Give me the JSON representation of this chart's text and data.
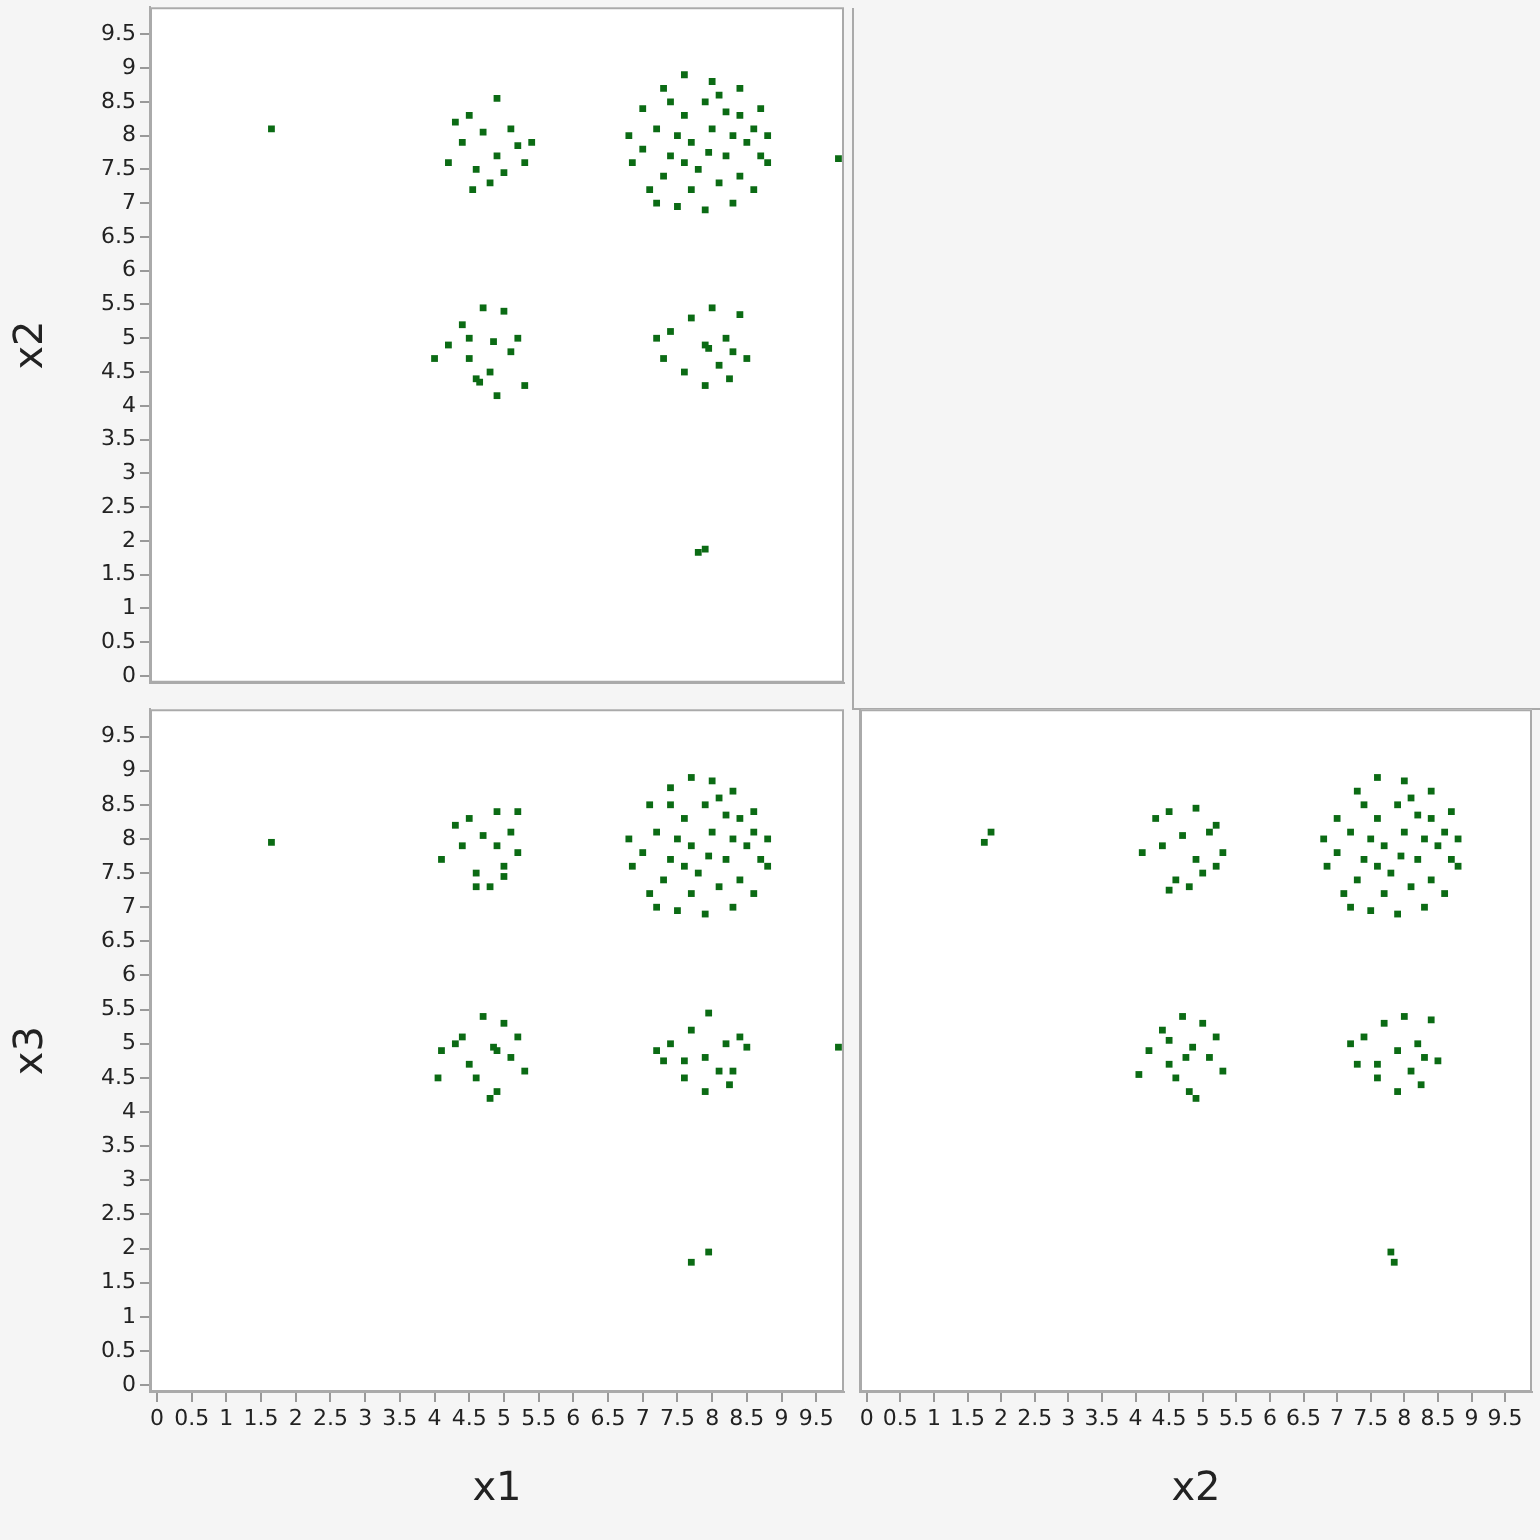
{
  "chart_data": [
    {
      "type": "scatter",
      "ylabel": "x2",
      "color": "#0b6b14",
      "marker": "square",
      "grid": false,
      "legend": false,
      "tick_labels": "y",
      "xlim": [
        -0.1,
        9.9
      ],
      "ylim": [
        -0.1,
        9.9
      ],
      "xticks": [
        0,
        0.5,
        1,
        1.5,
        2,
        2.5,
        3,
        3.5,
        4,
        4.5,
        5,
        5.5,
        6,
        6.5,
        7,
        7.5,
        8,
        8.5,
        9,
        9.5
      ],
      "yticks": [
        0,
        0.5,
        1,
        1.5,
        2,
        2.5,
        3,
        3.5,
        4,
        4.5,
        5,
        5.5,
        6,
        6.5,
        7,
        7.5,
        8,
        8.5,
        9,
        9.5
      ],
      "x": [
        7.0,
        7.3,
        7.6,
        8.0,
        8.4,
        8.7,
        8.8,
        8.8,
        8.6,
        8.3,
        7.9,
        7.5,
        7.1,
        6.85,
        6.8,
        7.2,
        7.4,
        7.6,
        7.8,
        8.0,
        8.2,
        8.4,
        8.5,
        7.7,
        8.1,
        7.3,
        7.9,
        8.3,
        7.5,
        7.0,
        8.6,
        8.1,
        7.4,
        7.7,
        8.4,
        7.95,
        7.2,
        8.7,
        7.6,
        8.2,
        4.3,
        4.5,
        4.9,
        5.1,
        5.4,
        5.3,
        4.9,
        4.6,
        4.2,
        4.4,
        4.8,
        5.0,
        4.7,
        5.2,
        4.55,
        4.4,
        4.7,
        5.0,
        4.2,
        4.5,
        4.6,
        4.65,
        4.8,
        5.1,
        5.3,
        4.9,
        5.2,
        4.0,
        4.85,
        4.5,
        7.2,
        7.4,
        7.7,
        8.0,
        8.4,
        8.2,
        7.9,
        7.95,
        8.3,
        8.5,
        7.6,
        7.9,
        8.1,
        7.3,
        8.25,
        1.65,
        7.8,
        7.9,
        9.82
      ],
      "values": [
        8.4,
        8.7,
        8.9,
        8.8,
        8.7,
        8.4,
        8.0,
        7.6,
        7.2,
        7.0,
        6.9,
        6.95,
        7.2,
        7.6,
        8.0,
        8.1,
        7.7,
        8.3,
        7.5,
        8.1,
        7.7,
        8.3,
        7.9,
        7.9,
        7.3,
        7.4,
        8.5,
        8.0,
        8.0,
        7.8,
        8.1,
        8.6,
        8.5,
        7.2,
        7.4,
        7.75,
        7.0,
        7.7,
        7.6,
        8.35,
        8.2,
        8.3,
        8.55,
        8.1,
        7.9,
        7.6,
        7.7,
        7.5,
        7.6,
        7.9,
        7.3,
        7.45,
        8.05,
        7.85,
        7.2,
        5.2,
        5.45,
        5.4,
        4.9,
        4.7,
        4.4,
        4.35,
        4.5,
        4.8,
        4.3,
        4.15,
        5.0,
        4.7,
        4.95,
        5.0,
        5.0,
        5.1,
        5.3,
        5.45,
        5.35,
        5.0,
        4.9,
        4.85,
        4.8,
        4.7,
        4.5,
        4.3,
        4.6,
        4.7,
        4.4,
        8.1,
        1.83,
        1.88,
        7.66
      ]
    },
    {
      "type": "scatter",
      "xlabel": "x1",
      "ylabel": "x3",
      "color": "#0b6b14",
      "marker": "square",
      "grid": false,
      "legend": false,
      "xlim": [
        -0.1,
        9.9
      ],
      "ylim": [
        -0.1,
        9.9
      ],
      "xticks": [
        0,
        0.5,
        1,
        1.5,
        2,
        2.5,
        3,
        3.5,
        4,
        4.5,
        5,
        5.5,
        6,
        6.5,
        7,
        7.5,
        8,
        8.5,
        9,
        9.5
      ],
      "yticks": [
        0,
        0.5,
        1,
        1.5,
        2,
        2.5,
        3,
        3.5,
        4,
        4.5,
        5,
        5.5,
        6,
        6.5,
        7,
        7.5,
        8,
        8.5,
        9,
        9.5
      ],
      "x": [
        7.1,
        7.4,
        7.7,
        8.0,
        8.3,
        8.6,
        8.8,
        8.8,
        8.6,
        8.3,
        7.9,
        7.5,
        7.1,
        6.85,
        6.8,
        7.2,
        7.4,
        7.6,
        7.8,
        8.0,
        8.2,
        8.4,
        8.5,
        7.7,
        8.1,
        7.3,
        7.9,
        8.3,
        7.5,
        7.0,
        8.6,
        8.1,
        7.4,
        7.7,
        8.4,
        7.95,
        7.2,
        8.7,
        7.6,
        8.2,
        4.3,
        4.5,
        4.9,
        5.1,
        5.2,
        5.0,
        4.9,
        4.6,
        4.1,
        4.4,
        4.8,
        5.0,
        4.7,
        5.2,
        4.6,
        4.3,
        4.7,
        5.0,
        4.1,
        4.5,
        4.6,
        4.9,
        4.8,
        5.1,
        5.3,
        4.9,
        5.2,
        4.05,
        4.85,
        4.4,
        7.2,
        7.4,
        7.7,
        7.95,
        8.4,
        8.2,
        7.9,
        7.6,
        8.3,
        8.5,
        7.6,
        7.9,
        8.1,
        7.3,
        8.25,
        1.65,
        7.7,
        7.95,
        9.82
      ],
      "values": [
        8.5,
        8.75,
        8.9,
        8.85,
        8.7,
        8.4,
        8.0,
        7.6,
        7.2,
        7.0,
        6.9,
        6.95,
        7.2,
        7.6,
        8.0,
        8.1,
        7.7,
        8.3,
        7.5,
        8.1,
        7.7,
        8.3,
        7.9,
        7.9,
        7.3,
        7.4,
        8.5,
        8.0,
        8.0,
        7.8,
        8.1,
        8.6,
        8.5,
        7.2,
        7.4,
        7.75,
        7.0,
        7.7,
        7.6,
        8.35,
        8.2,
        8.3,
        8.4,
        8.1,
        7.8,
        7.6,
        7.9,
        7.5,
        7.7,
        7.9,
        7.3,
        7.45,
        8.05,
        8.4,
        7.3,
        5.0,
        5.4,
        5.3,
        4.9,
        4.7,
        4.5,
        4.9,
        4.2,
        4.8,
        4.6,
        4.3,
        5.1,
        4.5,
        4.95,
        5.1,
        4.9,
        5.0,
        5.2,
        5.45,
        5.1,
        5.0,
        4.8,
        4.75,
        4.6,
        4.95,
        4.5,
        4.3,
        4.6,
        4.75,
        4.4,
        7.95,
        1.8,
        1.95,
        4.95
      ]
    },
    {
      "type": "scatter",
      "xlabel": "x2",
      "color": "#0b6b14",
      "marker": "square",
      "grid": false,
      "legend": false,
      "tick_labels": "x",
      "xlim": [
        -0.1,
        9.9
      ],
      "ylim": [
        -0.1,
        9.9
      ],
      "xticks": [
        0,
        0.5,
        1,
        1.5,
        2,
        2.5,
        3,
        3.5,
        4,
        4.5,
        5,
        5.5,
        6,
        6.5,
        7,
        7.5,
        8,
        8.5,
        9,
        9.5
      ],
      "yticks": [
        0,
        0.5,
        1,
        1.5,
        2,
        2.5,
        3,
        3.5,
        4,
        4.5,
        5,
        5.5,
        6,
        6.5,
        7,
        7.5,
        8,
        8.5,
        9,
        9.5
      ],
      "x": [
        7.0,
        7.3,
        7.6,
        8.0,
        8.4,
        8.7,
        8.8,
        8.8,
        8.6,
        8.3,
        7.9,
        7.5,
        7.1,
        6.85,
        6.8,
        7.2,
        7.4,
        7.6,
        7.8,
        8.0,
        8.2,
        8.4,
        8.5,
        7.7,
        8.1,
        7.3,
        7.9,
        8.3,
        7.5,
        7.0,
        8.6,
        8.1,
        7.4,
        7.7,
        8.4,
        7.95,
        7.2,
        8.7,
        7.6,
        8.2,
        4.3,
        4.5,
        4.9,
        5.1,
        5.3,
        5.2,
        4.9,
        4.6,
        4.1,
        4.4,
        4.8,
        5.0,
        4.7,
        5.2,
        4.5,
        4.4,
        4.7,
        5.0,
        4.2,
        4.5,
        4.6,
        4.75,
        4.8,
        5.1,
        5.3,
        4.9,
        5.2,
        4.05,
        4.85,
        4.5,
        7.2,
        7.4,
        7.7,
        8.0,
        8.4,
        8.2,
        7.9,
        7.6,
        8.3,
        8.5,
        7.6,
        7.9,
        8.1,
        7.3,
        8.25,
        1.75,
        1.85,
        7.8,
        7.85
      ],
      "values": [
        8.3,
        8.7,
        8.9,
        8.85,
        8.7,
        8.4,
        8.0,
        7.6,
        7.2,
        7.0,
        6.9,
        6.95,
        7.2,
        7.6,
        8.0,
        8.1,
        7.7,
        8.3,
        7.5,
        8.1,
        7.7,
        8.3,
        7.9,
        7.9,
        7.3,
        7.4,
        8.5,
        8.0,
        8.0,
        7.8,
        8.1,
        8.6,
        8.5,
        7.2,
        7.4,
        7.75,
        7.0,
        7.7,
        7.6,
        8.35,
        8.3,
        8.4,
        8.45,
        8.1,
        7.8,
        7.6,
        7.7,
        7.4,
        7.8,
        7.9,
        7.3,
        7.5,
        8.05,
        8.2,
        7.25,
        5.2,
        5.4,
        5.3,
        4.9,
        4.7,
        4.5,
        4.8,
        4.3,
        4.8,
        4.6,
        4.2,
        5.1,
        4.55,
        4.95,
        5.05,
        5.0,
        5.1,
        5.3,
        5.4,
        5.35,
        5.0,
        4.9,
        4.7,
        4.8,
        4.75,
        4.5,
        4.3,
        4.6,
        4.7,
        4.4,
        7.95,
        8.1,
        1.95,
        1.8
      ]
    }
  ]
}
